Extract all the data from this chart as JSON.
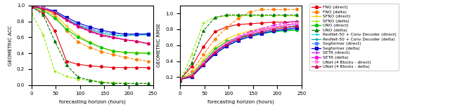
{
  "x": [
    0,
    24,
    48,
    72,
    96,
    120,
    144,
    168,
    192,
    216,
    240
  ],
  "models": [
    {
      "name": "FNO (direct)",
      "color": "#e8000b",
      "linestyle": "-",
      "marker": "o",
      "acc": [
        0.98,
        0.91,
        0.68,
        0.3,
        0.26,
        0.24,
        0.23,
        0.22,
        0.22,
        0.22,
        0.22
      ],
      "rmse": [
        0.17,
        0.33,
        0.58,
        0.77,
        0.83,
        0.86,
        0.87,
        0.88,
        0.89,
        0.89,
        0.9
      ]
    },
    {
      "name": "FNO (delta)",
      "color": "#ff7f00",
      "linestyle": "--",
      "marker": "o",
      "acc": [
        0.99,
        0.95,
        0.87,
        0.68,
        0.54,
        0.47,
        0.42,
        0.38,
        0.35,
        0.32,
        0.3
      ],
      "rmse": [
        0.17,
        0.27,
        0.48,
        0.68,
        0.82,
        0.94,
        1.02,
        1.05,
        1.05,
        1.05,
        1.05
      ]
    },
    {
      "name": "SFNO (direct)",
      "color": "#f5c900",
      "linestyle": "-",
      "marker": "+",
      "acc": [
        0.99,
        0.96,
        0.89,
        0.74,
        0.62,
        0.54,
        0.47,
        0.42,
        0.41,
        0.41,
        0.4
      ],
      "rmse": [
        0.17,
        0.24,
        0.42,
        0.58,
        0.68,
        0.74,
        0.78,
        0.81,
        0.82,
        0.83,
        0.84
      ]
    },
    {
      "name": "SFNO (delta)",
      "color": "#90ee00",
      "linestyle": "--",
      "marker": "+",
      "acc": [
        0.9,
        0.63,
        0.17,
        0.11,
        0.07,
        0.06,
        0.04,
        0.03,
        0.02,
        0.02,
        0.02
      ],
      "rmse": [
        0.15,
        0.48,
        0.88,
        0.95,
        0.97,
        0.97,
        0.97,
        0.97,
        0.97,
        0.97,
        0.97
      ]
    },
    {
      "name": "UNO (direct)",
      "color": "#00cc00",
      "linestyle": "-",
      "marker": "o",
      "acc": [
        0.99,
        0.94,
        0.84,
        0.7,
        0.6,
        0.53,
        0.47,
        0.43,
        0.41,
        0.4,
        0.4
      ],
      "rmse": [
        0.17,
        0.23,
        0.39,
        0.55,
        0.65,
        0.7,
        0.73,
        0.75,
        0.77,
        0.78,
        0.79
      ]
    },
    {
      "name": "UNO (delta)",
      "color": "#007700",
      "linestyle": "--",
      "marker": "^",
      "acc": [
        0.99,
        0.88,
        0.55,
        0.25,
        0.1,
        0.06,
        0.03,
        0.02,
        0.02,
        0.02,
        0.02
      ],
      "rmse": [
        0.15,
        0.38,
        0.78,
        0.95,
        0.98,
        0.98,
        0.98,
        0.98,
        0.98,
        0.98,
        0.98
      ]
    },
    {
      "name": "ResNet-50 + Conv Decoder (direct)",
      "color": "#00dddd",
      "linestyle": "--",
      "marker": ".",
      "acc": [
        0.99,
        0.97,
        0.92,
        0.82,
        0.74,
        0.68,
        0.63,
        0.61,
        0.62,
        0.63,
        0.65
      ],
      "rmse": [
        0.17,
        0.21,
        0.36,
        0.51,
        0.6,
        0.67,
        0.72,
        0.76,
        0.78,
        0.8,
        0.82
      ]
    },
    {
      "name": "ResNet-50 + Conv Decoder (delta)",
      "color": "#00aaaa",
      "linestyle": "-",
      "marker": ".",
      "acc": [
        0.99,
        0.97,
        0.92,
        0.83,
        0.75,
        0.7,
        0.65,
        0.63,
        0.62,
        0.63,
        0.63
      ],
      "rmse": [
        0.17,
        0.21,
        0.35,
        0.49,
        0.59,
        0.66,
        0.71,
        0.74,
        0.77,
        0.79,
        0.8
      ]
    },
    {
      "name": "Segformer (direct)",
      "color": "#4488ff",
      "linestyle": "--",
      "marker": "o",
      "acc": [
        0.99,
        0.97,
        0.92,
        0.83,
        0.76,
        0.71,
        0.67,
        0.65,
        0.64,
        0.64,
        0.64
      ],
      "rmse": [
        0.17,
        0.21,
        0.36,
        0.51,
        0.61,
        0.68,
        0.73,
        0.77,
        0.8,
        0.83,
        0.85
      ]
    },
    {
      "name": "Segformer (delta)",
      "color": "#0000cc",
      "linestyle": "-",
      "marker": "s",
      "acc": [
        0.99,
        0.97,
        0.93,
        0.85,
        0.78,
        0.73,
        0.69,
        0.66,
        0.64,
        0.64,
        0.64
      ],
      "rmse": [
        0.17,
        0.2,
        0.35,
        0.49,
        0.59,
        0.66,
        0.71,
        0.75,
        0.78,
        0.8,
        0.82
      ]
    },
    {
      "name": "SETR (direct)",
      "color": "#cc00ff",
      "linestyle": "--",
      "marker": "+",
      "acc": [
        0.99,
        0.97,
        0.91,
        0.81,
        0.73,
        0.67,
        0.62,
        0.59,
        0.57,
        0.55,
        0.52
      ],
      "rmse": [
        0.17,
        0.22,
        0.38,
        0.53,
        0.63,
        0.71,
        0.77,
        0.81,
        0.85,
        0.88,
        0.9
      ]
    },
    {
      "name": "SETR (delta)",
      "color": "#ff00ff",
      "linestyle": "-",
      "marker": "o",
      "acc": [
        0.99,
        0.97,
        0.91,
        0.82,
        0.74,
        0.68,
        0.63,
        0.6,
        0.57,
        0.55,
        0.52
      ],
      "rmse": [
        0.17,
        0.22,
        0.37,
        0.52,
        0.62,
        0.7,
        0.75,
        0.79,
        0.82,
        0.85,
        0.87
      ]
    },
    {
      "name": "UNet (4 Blocks - direct)",
      "color": "#ff88cc",
      "linestyle": "--",
      "marker": "o",
      "acc": [
        0.99,
        0.97,
        0.91,
        0.82,
        0.74,
        0.68,
        0.63,
        0.6,
        0.57,
        0.55,
        0.52
      ],
      "rmse": [
        0.17,
        0.22,
        0.38,
        0.53,
        0.63,
        0.71,
        0.76,
        0.8,
        0.83,
        0.86,
        0.88
      ]
    },
    {
      "name": "UNet (4 Blocks - delta)",
      "color": "#cc0044",
      "linestyle": "-",
      "marker": "^",
      "acc": [
        0.99,
        0.96,
        0.91,
        0.82,
        0.74,
        0.68,
        0.63,
        0.6,
        0.57,
        0.55,
        0.52
      ],
      "rmse": [
        0.17,
        0.21,
        0.36,
        0.51,
        0.61,
        0.68,
        0.73,
        0.77,
        0.8,
        0.82,
        0.84
      ]
    }
  ],
  "xlabel": "forecasting horizon (hours)",
  "ylabel_acc": "GEOMETRIC ACC",
  "ylabel_rmse": "GEOMETRIC RMSE",
  "xlim": [
    0,
    250
  ],
  "acc_ylim": [
    0.0,
    1.0
  ],
  "rmse_ylim": [
    0.1,
    1.1
  ],
  "xticks": [
    0,
    50,
    100,
    150,
    200,
    250
  ],
  "acc_yticks": [
    0.0,
    0.2,
    0.4,
    0.6,
    0.8,
    1.0
  ],
  "rmse_yticks": [
    0.2,
    0.4,
    0.6,
    0.8,
    1.0
  ]
}
